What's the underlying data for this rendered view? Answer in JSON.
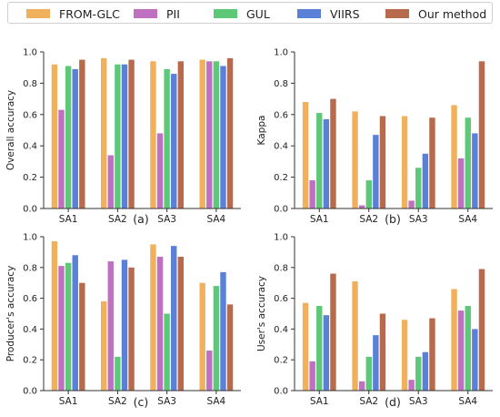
{
  "legend": {
    "items": [
      {
        "label": "FROM-GLC",
        "color": "#f0b05c"
      },
      {
        "label": "PII",
        "color": "#c070c0"
      },
      {
        "label": "GUL",
        "color": "#5cc878"
      },
      {
        "label": "VIIRS",
        "color": "#5a80d8"
      },
      {
        "label": "Our method",
        "color": "#b86a4c"
      }
    ]
  },
  "chart_data": [
    {
      "type": "bar",
      "panel_label": "(a)",
      "ylabel": "Overall accuracy",
      "ylim": [
        0,
        1.0
      ],
      "yticks": [
        "0.0",
        "0.2",
        "0.4",
        "0.6",
        "0.8",
        "1.0"
      ],
      "categories": [
        "SA1",
        "SA2",
        "SA3",
        "SA4"
      ],
      "series": [
        {
          "name": "FROM-GLC",
          "values": [
            0.92,
            0.96,
            0.94,
            0.95
          ]
        },
        {
          "name": "PII",
          "values": [
            0.63,
            0.34,
            0.48,
            0.94
          ]
        },
        {
          "name": "GUL",
          "values": [
            0.91,
            0.92,
            0.89,
            0.94
          ]
        },
        {
          "name": "VIIRS",
          "values": [
            0.89,
            0.92,
            0.86,
            0.91
          ]
        },
        {
          "name": "Our method",
          "values": [
            0.95,
            0.95,
            0.94,
            0.96
          ]
        }
      ]
    },
    {
      "type": "bar",
      "panel_label": "(b)",
      "ylabel": "Kappa",
      "ylim": [
        0,
        1.0
      ],
      "yticks": [
        "0.0",
        "0.2",
        "0.4",
        "0.6",
        "0.8",
        "1.0"
      ],
      "categories": [
        "SA1",
        "SA2",
        "SA3",
        "SA4"
      ],
      "series": [
        {
          "name": "FROM-GLC",
          "values": [
            0.68,
            0.62,
            0.59,
            0.66
          ]
        },
        {
          "name": "PII",
          "values": [
            0.18,
            0.02,
            0.05,
            0.32
          ]
        },
        {
          "name": "GUL",
          "values": [
            0.61,
            0.18,
            0.26,
            0.58
          ]
        },
        {
          "name": "VIIRS",
          "values": [
            0.57,
            0.47,
            0.35,
            0.48
          ]
        },
        {
          "name": "Our method",
          "values": [
            0.7,
            0.59,
            0.58,
            0.94
          ]
        }
      ]
    },
    {
      "type": "bar",
      "panel_label": "(c)",
      "ylabel": "Producer's accuracy",
      "ylim": [
        0,
        1.0
      ],
      "yticks": [
        "0.0",
        "0.2",
        "0.4",
        "0.6",
        "0.8",
        "1.0"
      ],
      "categories": [
        "SA1",
        "SA2",
        "SA3",
        "SA4"
      ],
      "series": [
        {
          "name": "FROM-GLC",
          "values": [
            0.97,
            0.58,
            0.95,
            0.7
          ]
        },
        {
          "name": "PII",
          "values": [
            0.81,
            0.84,
            0.87,
            0.26
          ]
        },
        {
          "name": "GUL",
          "values": [
            0.83,
            0.22,
            0.5,
            0.68
          ]
        },
        {
          "name": "VIIRS",
          "values": [
            0.88,
            0.85,
            0.94,
            0.77
          ]
        },
        {
          "name": "Our method",
          "values": [
            0.7,
            0.8,
            0.87,
            0.56
          ]
        }
      ]
    },
    {
      "type": "bar",
      "panel_label": "(d)",
      "ylabel": "User's accuracy",
      "ylim": [
        0,
        1.0
      ],
      "yticks": [
        "0.0",
        "0.2",
        "0.4",
        "0.6",
        "0.8",
        "1.0"
      ],
      "categories": [
        "SA1",
        "SA2",
        "SA3",
        "SA4"
      ],
      "series": [
        {
          "name": "FROM-GLC",
          "values": [
            0.57,
            0.71,
            0.46,
            0.66
          ]
        },
        {
          "name": "PII",
          "values": [
            0.19,
            0.06,
            0.07,
            0.52
          ]
        },
        {
          "name": "GUL",
          "values": [
            0.55,
            0.22,
            0.22,
            0.55
          ]
        },
        {
          "name": "VIIRS",
          "values": [
            0.49,
            0.36,
            0.25,
            0.4
          ]
        },
        {
          "name": "Our method",
          "values": [
            0.76,
            0.5,
            0.47,
            0.79
          ]
        }
      ]
    }
  ]
}
